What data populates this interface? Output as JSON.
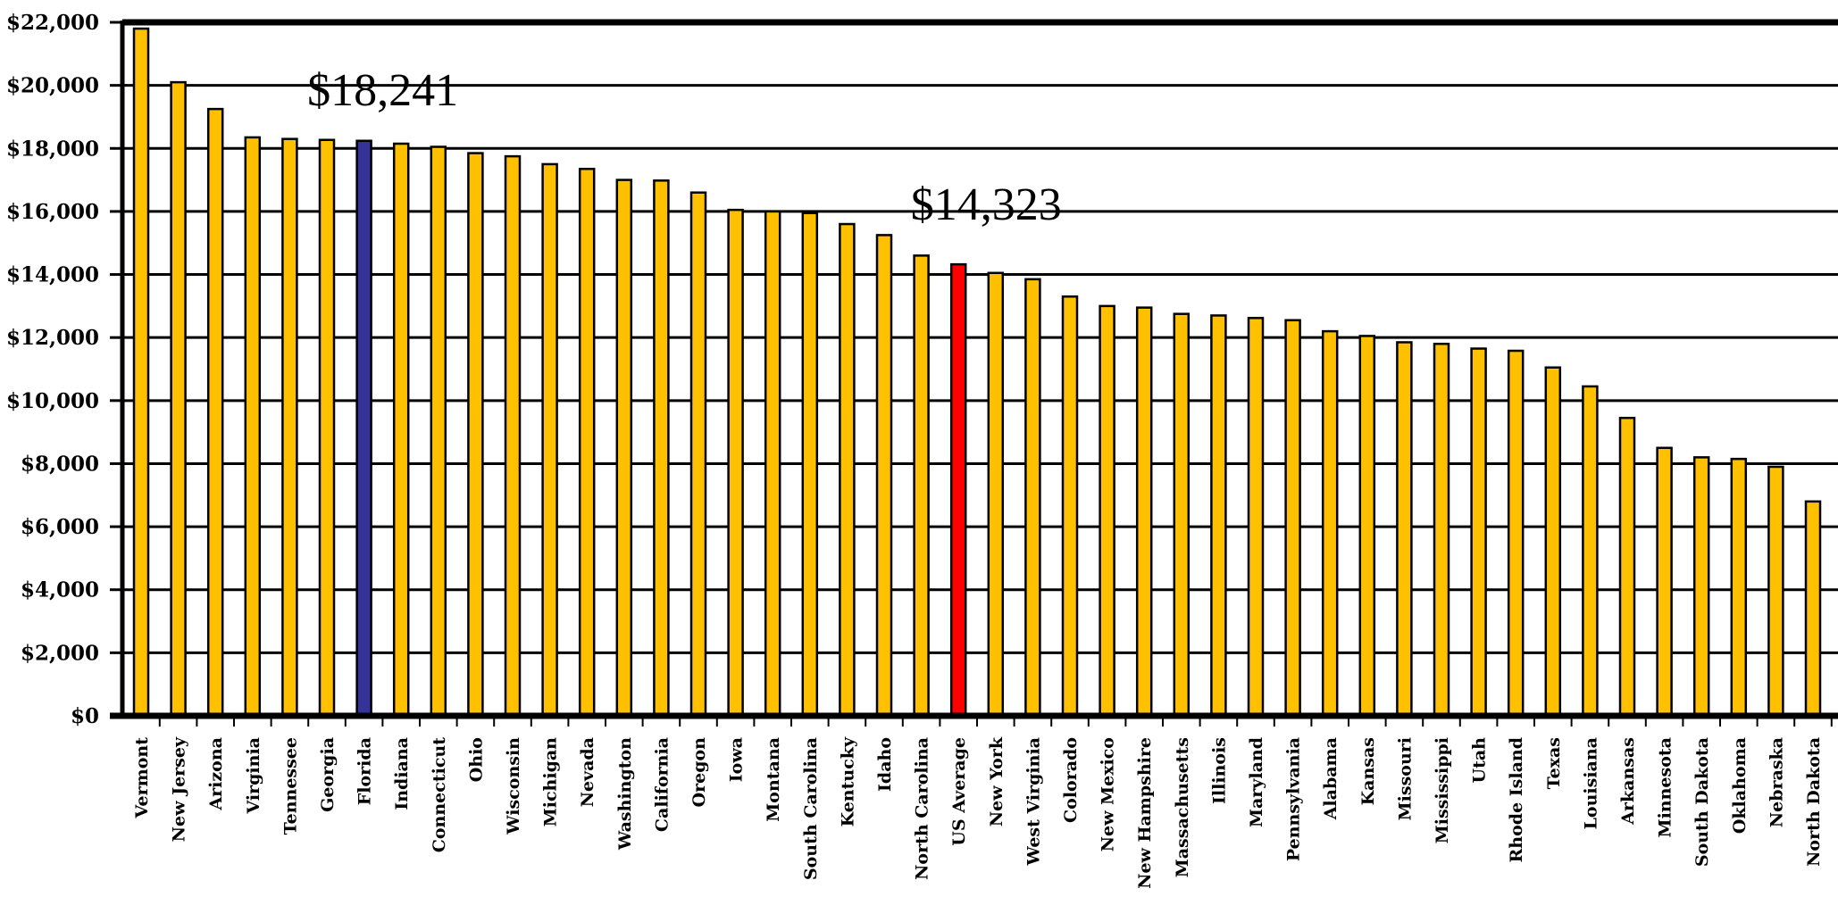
{
  "chart_data": {
    "type": "bar",
    "title": "",
    "xlabel": "",
    "ylabel": "",
    "ylim": [
      0,
      22000
    ],
    "yticks": [
      0,
      2000,
      4000,
      6000,
      8000,
      10000,
      12000,
      14000,
      16000,
      18000,
      20000,
      22000
    ],
    "ytick_labels": [
      "$0",
      "$2,000",
      "$4,000",
      "$6,000",
      "$8,000",
      "$10,000",
      "$12,000",
      "$14,000",
      "$16,000",
      "$18,000",
      "$20,000",
      "$22,000"
    ],
    "grid": true,
    "categories": [
      "Vermont",
      "New Jersey",
      "Arizona",
      "Virginia",
      "Tennessee",
      "Georgia",
      "Florida",
      "Indiana",
      "Connecticut",
      "Ohio",
      "Wisconsin",
      "Michigan",
      "Nevada",
      "Washington",
      "California",
      "Oregon",
      "Iowa",
      "Montana",
      "South Carolina",
      "Kentucky",
      "Idaho",
      "North Carolina",
      "US Average",
      "New York",
      "West Virginia",
      "Colorado",
      "New Mexico",
      "New Hampshire",
      "Massachusetts",
      "Illinois",
      "Maryland",
      "Pennsylvania",
      "Alabama",
      "Kansas",
      "Missouri",
      "Mississippi",
      "Utah",
      "Rhode Island",
      "Texas",
      "Louisiana",
      "Arkansas",
      "Minnesota",
      "South Dakota",
      "Oklahoma",
      "Nebraska",
      "North Dakota"
    ],
    "values": [
      21800,
      20100,
      19250,
      18350,
      18300,
      18270,
      18241,
      18150,
      18050,
      17850,
      17750,
      17500,
      17350,
      17000,
      16980,
      16600,
      16050,
      16000,
      15950,
      15600,
      15250,
      14600,
      14323,
      14050,
      13850,
      13300,
      13000,
      12950,
      12750,
      12700,
      12620,
      12550,
      12200,
      12050,
      11850,
      11800,
      11650,
      11580,
      11050,
      10450,
      9450,
      8500,
      8200,
      8150,
      7900,
      6800
    ],
    "colors": {
      "default": "#FFC000",
      "Florida": "#333399",
      "US Average": "#FF0000"
    },
    "annotations": [
      {
        "text": "$18,241",
        "category": "Florida",
        "value": 18241
      },
      {
        "text": "$14,323",
        "category": "US Average",
        "value": 14323
      }
    ]
  }
}
